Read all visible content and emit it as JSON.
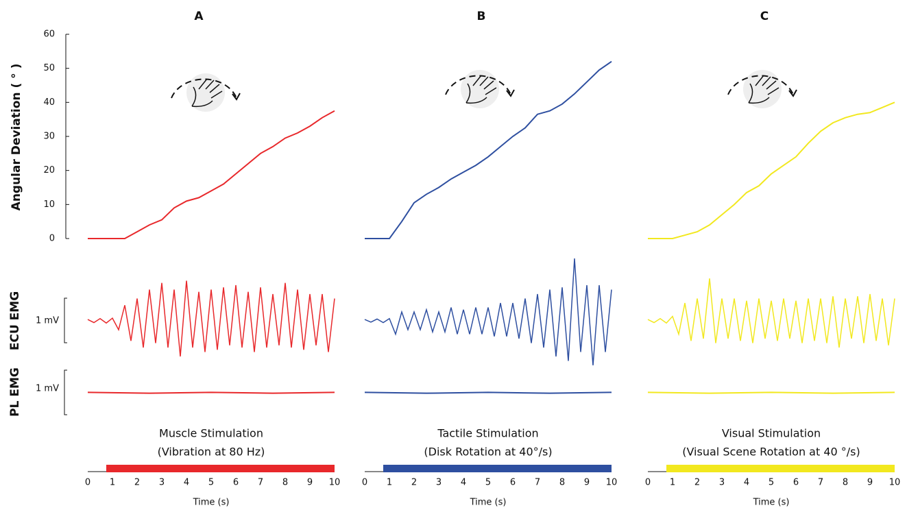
{
  "chart_data": [
    {
      "type": "line",
      "title": "A",
      "y_label": "Angular Deviation ( ° )",
      "ecu_label": "ECU EMG",
      "pl_label": "PL EMG",
      "scale_labels": [
        "1 mV",
        "1 mV"
      ],
      "ylim": [
        0,
        60
      ],
      "yticks": [
        0,
        10,
        20,
        30,
        40,
        50,
        60
      ],
      "xlim": [
        0,
        10
      ],
      "xticks": [
        0,
        1,
        2,
        3,
        4,
        5,
        6,
        7,
        8,
        9,
        10
      ],
      "x_label": "Time (s)",
      "color": "#e8282b",
      "x": [
        0,
        0.5,
        1,
        1.5,
        2,
        2.5,
        3,
        3.5,
        4,
        4.5,
        5,
        5.5,
        6,
        6.5,
        7,
        7.5,
        8,
        8.5,
        9,
        9.5,
        10
      ],
      "values": [
        0,
        0,
        0,
        0,
        2,
        4,
        5.5,
        9,
        11,
        12,
        14,
        16,
        19,
        22,
        25,
        27,
        29.5,
        31,
        33,
        35.5,
        37.5
      ],
      "emg_x": [
        0,
        0.25,
        0.5,
        0.75,
        1,
        1.25,
        1.5,
        1.75,
        2,
        2.25,
        2.5,
        2.75,
        3,
        3.25,
        3.5,
        3.75,
        4,
        4.25,
        4.5,
        4.75,
        5,
        5.25,
        5.5,
        5.75,
        6,
        6.25,
        6.5,
        6.75,
        7,
        7.25,
        7.5,
        7.75,
        8,
        8.25,
        8.5,
        8.75,
        9,
        9.25,
        9.5,
        9.75,
        10
      ],
      "ecu_emg": [
        0.03,
        -0.04,
        0.05,
        -0.05,
        0.06,
        -0.2,
        0.35,
        -0.45,
        0.5,
        -0.6,
        0.7,
        -0.5,
        0.85,
        -0.6,
        0.7,
        -0.8,
        0.9,
        -0.6,
        0.65,
        -0.7,
        0.7,
        -0.65,
        0.75,
        -0.55,
        0.8,
        -0.6,
        0.65,
        -0.7,
        0.75,
        -0.6,
        0.6,
        -0.55,
        0.85,
        -0.6,
        0.7,
        -0.65,
        0.6,
        -0.55,
        0.6,
        -0.7,
        0.5
      ],
      "pl_x": [
        0,
        2.5,
        5,
        7.5,
        10
      ],
      "pl_emg": [
        0.01,
        -0.01,
        0.01,
        -0.01,
        0.01
      ],
      "stimulus": [
        0.75,
        10
      ],
      "stim_title": "Muscle Stimulation",
      "stim_detail": "(Vibration at 80 Hz)"
    },
    {
      "type": "line",
      "title": "B",
      "xlim": [
        0,
        10
      ],
      "xticks": [
        0,
        1,
        2,
        3,
        4,
        5,
        6,
        7,
        8,
        9,
        10
      ],
      "x_label": "Time (s)",
      "color": "#2e4fa0",
      "x": [
        0,
        0.5,
        1,
        1.5,
        2,
        2.5,
        3,
        3.5,
        4,
        4.5,
        5,
        5.5,
        6,
        6.5,
        7,
        7.5,
        8,
        8.5,
        9,
        9.5,
        10
      ],
      "values": [
        0,
        0,
        0,
        5,
        10.5,
        13,
        15,
        17.5,
        19.5,
        21.5,
        24,
        27,
        30,
        32.5,
        36.5,
        37.5,
        39.5,
        42.5,
        46,
        49.5,
        52
      ],
      "emg_x": [
        0,
        0.25,
        0.5,
        0.75,
        1,
        1.25,
        1.5,
        1.75,
        2,
        2.25,
        2.5,
        2.75,
        3,
        3.25,
        3.5,
        3.75,
        4,
        4.25,
        4.5,
        4.75,
        5,
        5.25,
        5.5,
        5.75,
        6,
        6.25,
        6.5,
        6.75,
        7,
        7.25,
        7.5,
        7.75,
        8,
        8.25,
        8.5,
        8.75,
        9,
        9.25,
        9.5,
        9.75,
        10
      ],
      "ecu_emg": [
        0.03,
        -0.03,
        0.04,
        -0.04,
        0.05,
        -0.3,
        0.2,
        -0.2,
        0.2,
        -0.2,
        0.25,
        -0.25,
        0.2,
        -0.25,
        0.3,
        -0.3,
        0.25,
        -0.3,
        0.3,
        -0.3,
        0.3,
        -0.35,
        0.4,
        -0.35,
        0.4,
        -0.4,
        0.5,
        -0.5,
        0.6,
        -0.6,
        0.7,
        -0.8,
        0.75,
        -0.9,
        1.4,
        -0.7,
        0.8,
        -1.0,
        0.8,
        -0.7,
        0.7
      ],
      "pl_x": [
        0,
        2.5,
        5,
        7.5,
        10
      ],
      "pl_emg": [
        0.01,
        -0.01,
        0.01,
        -0.01,
        0.01
      ],
      "stimulus": [
        0.75,
        10
      ],
      "stim_title": "Tactile Stimulation",
      "stim_detail": "(Disk Rotation at 40°/s)"
    },
    {
      "type": "line",
      "title": "C",
      "xlim": [
        0,
        10
      ],
      "xticks": [
        0,
        1,
        2,
        3,
        4,
        5,
        6,
        7,
        8,
        9,
        10
      ],
      "x_label": "Time (s)",
      "color": "#f2e81f",
      "x": [
        0,
        0.5,
        1,
        1.5,
        2,
        2.5,
        3,
        3.5,
        4,
        4.5,
        5,
        5.5,
        6,
        6.5,
        7,
        7.5,
        8,
        8.5,
        9,
        9.5,
        10
      ],
      "values": [
        0,
        0,
        0,
        1,
        2,
        4,
        7,
        10,
        13.5,
        15.5,
        19,
        21.5,
        24,
        28,
        31.5,
        34,
        35.5,
        36.5,
        37,
        38.5,
        40
      ],
      "emg_x": [
        0,
        0.25,
        0.5,
        0.75,
        1,
        1.25,
        1.5,
        1.75,
        2,
        2.25,
        2.5,
        2.75,
        3,
        3.25,
        3.5,
        3.75,
        4,
        4.25,
        4.5,
        4.75,
        5,
        5.25,
        5.5,
        5.75,
        6,
        6.25,
        6.5,
        6.75,
        7,
        7.25,
        7.5,
        7.75,
        8,
        8.25,
        8.5,
        8.75,
        9,
        9.25,
        9.5,
        9.75,
        10
      ],
      "ecu_emg": [
        0.03,
        -0.04,
        0.05,
        -0.05,
        0.1,
        -0.3,
        0.4,
        -0.45,
        0.5,
        -0.4,
        0.95,
        -0.5,
        0.5,
        -0.4,
        0.5,
        -0.45,
        0.45,
        -0.5,
        0.5,
        -0.4,
        0.45,
        -0.45,
        0.5,
        -0.4,
        0.45,
        -0.5,
        0.5,
        -0.45,
        0.5,
        -0.5,
        0.55,
        -0.6,
        0.5,
        -0.4,
        0.55,
        -0.5,
        0.6,
        -0.45,
        0.5,
        -0.55,
        0.5
      ],
      "pl_x": [
        0,
        2.5,
        5,
        7.5,
        10
      ],
      "pl_emg": [
        0.01,
        -0.01,
        0.01,
        -0.01,
        0.01
      ],
      "stimulus": [
        0.75,
        10
      ],
      "stim_title": "Visual Stimulation",
      "stim_detail": "(Visual Scene Rotation at 40 °/s)"
    }
  ]
}
